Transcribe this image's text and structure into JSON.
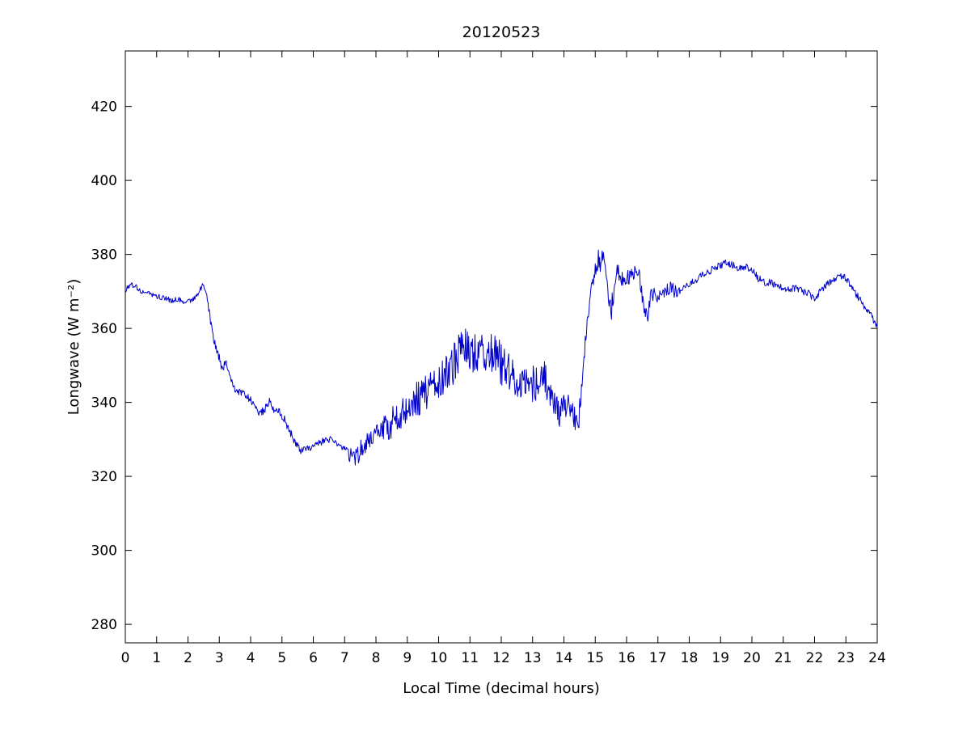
{
  "figure": {
    "background": "#ffffff",
    "axis_color": "#000000",
    "text_color": "#000000"
  },
  "chart_data": {
    "type": "line",
    "title": "20120523",
    "xlabel": "Local Time (decimal hours)",
    "ylabel": "Longwave (W m⁻²)",
    "xlim": [
      0,
      24
    ],
    "ylim": [
      275,
      435
    ],
    "x_ticks": [
      0,
      1,
      2,
      3,
      4,
      5,
      6,
      7,
      8,
      9,
      10,
      11,
      12,
      13,
      14,
      15,
      16,
      17,
      18,
      19,
      20,
      21,
      22,
      23,
      24
    ],
    "y_ticks": [
      280,
      300,
      320,
      340,
      360,
      380,
      400,
      420
    ],
    "grid": false,
    "legend": "none",
    "line_color": "#0000cc",
    "series": [
      {
        "name": "longwave",
        "baseline": [
          [
            0,
            370
          ],
          [
            0.15,
            372
          ],
          [
            0.3,
            371.5
          ],
          [
            0.5,
            370
          ],
          [
            0.7,
            369.5
          ],
          [
            0.9,
            369
          ],
          [
            1.1,
            368.5
          ],
          [
            1.3,
            368
          ],
          [
            1.5,
            367.5
          ],
          [
            1.7,
            368
          ],
          [
            1.9,
            367
          ],
          [
            2.1,
            367.5
          ],
          [
            2.3,
            369
          ],
          [
            2.45,
            371.5
          ],
          [
            2.55,
            371
          ],
          [
            2.7,
            363
          ],
          [
            2.85,
            356
          ],
          [
            3.0,
            352
          ],
          [
            3.1,
            348.5
          ],
          [
            3.2,
            351
          ],
          [
            3.35,
            346
          ],
          [
            3.5,
            343.5
          ],
          [
            3.7,
            342.5
          ],
          [
            3.9,
            341.5
          ],
          [
            4.1,
            339.5
          ],
          [
            4.3,
            337
          ],
          [
            4.45,
            338
          ],
          [
            4.6,
            340.5
          ],
          [
            4.75,
            338
          ],
          [
            4.9,
            337.5
          ],
          [
            5.05,
            336
          ],
          [
            5.2,
            333
          ],
          [
            5.4,
            329.5
          ],
          [
            5.6,
            327
          ],
          [
            5.8,
            327.5
          ],
          [
            6.0,
            328
          ],
          [
            6.2,
            329
          ],
          [
            6.4,
            330
          ],
          [
            6.6,
            330
          ],
          [
            6.8,
            328.5
          ],
          [
            7.0,
            327.5
          ],
          [
            7.2,
            326
          ],
          [
            7.4,
            325.5
          ],
          [
            7.6,
            328.5
          ],
          [
            7.8,
            330.5
          ],
          [
            8.0,
            331.5
          ],
          [
            8.2,
            332.5
          ],
          [
            8.5,
            334.5
          ],
          [
            8.8,
            337
          ],
          [
            9.1,
            340
          ],
          [
            9.4,
            341.5
          ],
          [
            9.7,
            343
          ],
          [
            10.0,
            345.5
          ],
          [
            10.3,
            348.5
          ],
          [
            10.6,
            352.5
          ],
          [
            10.8,
            355
          ],
          [
            11.0,
            354
          ],
          [
            11.2,
            352
          ],
          [
            11.5,
            354.5
          ],
          [
            11.7,
            353.5
          ],
          [
            12.0,
            350.5
          ],
          [
            12.3,
            348
          ],
          [
            12.6,
            345.5
          ],
          [
            12.9,
            344.5
          ],
          [
            13.1,
            345.5
          ],
          [
            13.3,
            347
          ],
          [
            13.5,
            345
          ],
          [
            13.7,
            340
          ],
          [
            13.85,
            336.5
          ],
          [
            14.0,
            340
          ],
          [
            14.15,
            338.5
          ],
          [
            14.3,
            336
          ],
          [
            14.45,
            333.5
          ],
          [
            14.55,
            342
          ],
          [
            14.7,
            357
          ],
          [
            14.85,
            368
          ],
          [
            15.0,
            376
          ],
          [
            15.1,
            380
          ],
          [
            15.2,
            377.5
          ],
          [
            15.3,
            379
          ],
          [
            15.4,
            371
          ],
          [
            15.5,
            364.5
          ],
          [
            15.6,
            371.5
          ],
          [
            15.7,
            376
          ],
          [
            15.85,
            373.5
          ],
          [
            16.0,
            373
          ],
          [
            16.2,
            375.5
          ],
          [
            16.4,
            374
          ],
          [
            16.55,
            366
          ],
          [
            16.65,
            362.5
          ],
          [
            16.8,
            370
          ],
          [
            17.0,
            368
          ],
          [
            17.2,
            370
          ],
          [
            17.4,
            371
          ],
          [
            17.6,
            369.5
          ],
          [
            17.8,
            371
          ],
          [
            18.0,
            372
          ],
          [
            18.2,
            373
          ],
          [
            18.4,
            374.5
          ],
          [
            18.6,
            375
          ],
          [
            18.8,
            376.5
          ],
          [
            19.0,
            377
          ],
          [
            19.2,
            378
          ],
          [
            19.4,
            377
          ],
          [
            19.6,
            376
          ],
          [
            19.8,
            376.5
          ],
          [
            20.0,
            376
          ],
          [
            20.2,
            373.5
          ],
          [
            20.4,
            372.5
          ],
          [
            20.6,
            372.5
          ],
          [
            20.8,
            371.5
          ],
          [
            21.0,
            371
          ],
          [
            21.2,
            370.5
          ],
          [
            21.4,
            371
          ],
          [
            21.6,
            370
          ],
          [
            21.8,
            369.5
          ],
          [
            22.0,
            368
          ],
          [
            22.2,
            370.5
          ],
          [
            22.4,
            372
          ],
          [
            22.6,
            373
          ],
          [
            22.8,
            374
          ],
          [
            23.0,
            373.5
          ],
          [
            23.2,
            371
          ],
          [
            23.4,
            368.5
          ],
          [
            23.6,
            366
          ],
          [
            23.8,
            363.5
          ],
          [
            24,
            360.5
          ]
        ],
        "noise_segments": [
          {
            "from": 0,
            "to": 2.55,
            "amp": 0.7
          },
          {
            "from": 2.55,
            "to": 5.3,
            "amp": 1.1
          },
          {
            "from": 5.3,
            "to": 7.1,
            "amp": 0.9
          },
          {
            "from": 7.1,
            "to": 8.2,
            "amp": 2.8
          },
          {
            "from": 8.2,
            "to": 9.2,
            "amp": 4.2
          },
          {
            "from": 9.2,
            "to": 10.3,
            "amp": 5.0
          },
          {
            "from": 10.3,
            "to": 12.3,
            "amp": 6.0
          },
          {
            "from": 12.3,
            "to": 13.6,
            "amp": 5.0
          },
          {
            "from": 13.6,
            "to": 14.5,
            "amp": 3.5
          },
          {
            "from": 14.5,
            "to": 15.6,
            "amp": 3.5
          },
          {
            "from": 15.6,
            "to": 16.9,
            "amp": 2.2
          },
          {
            "from": 16.9,
            "to": 17.6,
            "amp": 1.8
          },
          {
            "from": 17.6,
            "to": 24.01,
            "amp": 1.0
          }
        ]
      }
    ]
  }
}
